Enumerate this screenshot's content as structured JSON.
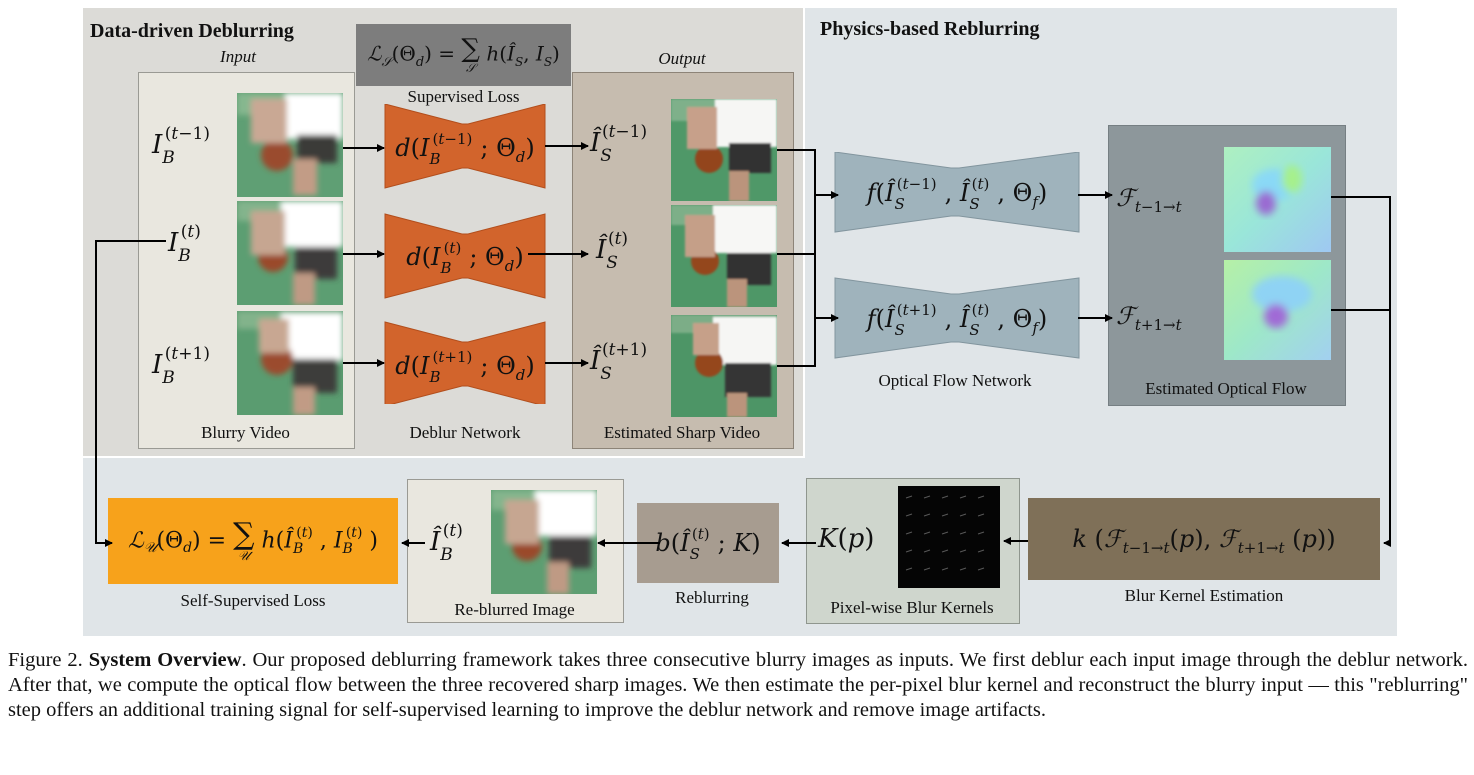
{
  "panels": {
    "data_driven_title": "Data-driven Deblurring",
    "physics_title": "Physics-based Reblurring"
  },
  "labels": {
    "input": "Input",
    "output": "Output",
    "blurry_video": "Blurry Video",
    "deblur_network": "Deblur Network",
    "estimated_sharp_video": "Estimated Sharp Video",
    "supervised_loss": "Supervised Loss",
    "optical_flow_network": "Optical Flow Network",
    "estimated_optical_flow": "Estimated Optical Flow",
    "blur_kernel_estimation": "Blur Kernel Estimation",
    "pixelwise_blur_kernels": "Pixel-wise Blur Kernels",
    "reblurring": "Reblurring",
    "reblurred_image": "Re-blurred Image",
    "self_supervised_loss": "Self-Supervised Loss"
  },
  "math": {
    "supervised_loss": "ℒ𝒮(Θd) = Σ𝒮 h(Î𝑆, I𝑆)",
    "input_prev": "I_B^(t−1)",
    "input_cur": "I_B^(t)",
    "input_next": "I_B^(t+1)",
    "deblur_prev": "d(I_B^(t−1); Θd)",
    "deblur_cur": "d(I_B^(t); Θd)",
    "deblur_next": "d(I_B^(t+1); Θd)",
    "sharp_prev": "Î_S^(t−1)",
    "sharp_cur": "Î_S^(t)",
    "sharp_next": "Î_S^(t+1)",
    "flow_net_prev": "f(Î_S^(t−1), Î_S^(t), Θf)",
    "flow_net_next": "f(Î_S^(t+1), Î_S^(t), Θf)",
    "flow_prev": "ℱ t−1→t",
    "flow_next": "ℱ t+1→t",
    "kernel_estimation": "k (ℱ t−1→t(p), ℱ t+1→t (p))",
    "kernel": "K(p)",
    "reblur": "b(Î_S^(t); K)",
    "reblurred": "Î_B^(t)",
    "self_supervised_loss": "ℒ𝒰(Θd) = Σ𝒰 h(Î_B^(t), I_B^(t))"
  },
  "caption": {
    "prefix": "Figure 2.",
    "title": "System Overview",
    "body": ". Our proposed deblurring framework takes three consecutive blurry images as inputs. We first deblur each input image through the deblur network. After that, we compute the optical flow between the three recovered sharp images. We then estimate the per-pixel blur kernel and reconstruct the blurry input — this \"reblurring\" step offers an additional training signal for self-supervised learning to improve the deblur network and remove image artifacts."
  },
  "colors": {
    "deblur_network": "#d2642c",
    "flow_network": "#9fb3bc",
    "flow_panel": "#8d979b",
    "kernel_estimation": "#7f7058",
    "reblur": "#a79c90",
    "self_supervised_loss": "#f7a21b",
    "supervised_loss_box": "#7d7d7d"
  }
}
